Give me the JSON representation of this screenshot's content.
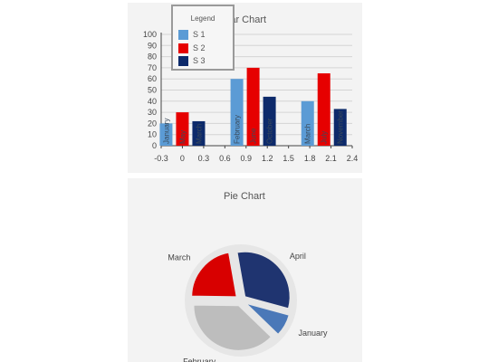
{
  "bar_chart": {
    "title": "Bar Chart",
    "legend_title": "Legend"
  },
  "pie_chart": {
    "title": "Pie Chart"
  },
  "chart_data": [
    {
      "type": "bar",
      "title": "Bar Chart",
      "legend": {
        "title": "Legend",
        "placement": "top-left",
        "entries": [
          "S 1",
          "S 2",
          "S 3"
        ]
      },
      "x_tick_labels": [
        "-0.3",
        "0",
        "0.3",
        "0.6",
        "0.9",
        "1.2",
        "1.5",
        "1.8",
        "2.1",
        "2.4"
      ],
      "y_tick_labels": [
        "0",
        "10",
        "20",
        "30",
        "40",
        "50",
        "60",
        "70",
        "80",
        "90",
        "100"
      ],
      "ylim": [
        0,
        100
      ],
      "xlim": [
        -0.3,
        2.4
      ],
      "grid": true,
      "series": [
        {
          "name": "S 1",
          "color": "#5b9bd5",
          "x": [
            0,
            1,
            2
          ],
          "values": [
            20,
            60,
            40
          ],
          "labels": [
            "January",
            "February",
            "March"
          ]
        },
        {
          "name": "S 2",
          "color": "#e60000",
          "x": [
            0,
            1,
            2
          ],
          "values": [
            30,
            70,
            65
          ],
          "labels": [
            "May",
            "June",
            "July"
          ]
        },
        {
          "name": "S 3",
          "color": "#0d2a6b",
          "x": [
            0,
            1,
            2
          ],
          "values": [
            22,
            44,
            33
          ],
          "labels": [
            "March",
            "October",
            "November"
          ]
        }
      ]
    },
    {
      "type": "pie",
      "title": "Pie Chart",
      "slices": [
        {
          "label": "April",
          "value": 32,
          "color": "#1f3470"
        },
        {
          "label": "January",
          "value": 8,
          "color": "#4a78b8"
        },
        {
          "label": "February",
          "value": 38,
          "color": "#bdbdbd"
        },
        {
          "label": "March",
          "value": 22,
          "color": "#d80000"
        }
      ]
    }
  ]
}
